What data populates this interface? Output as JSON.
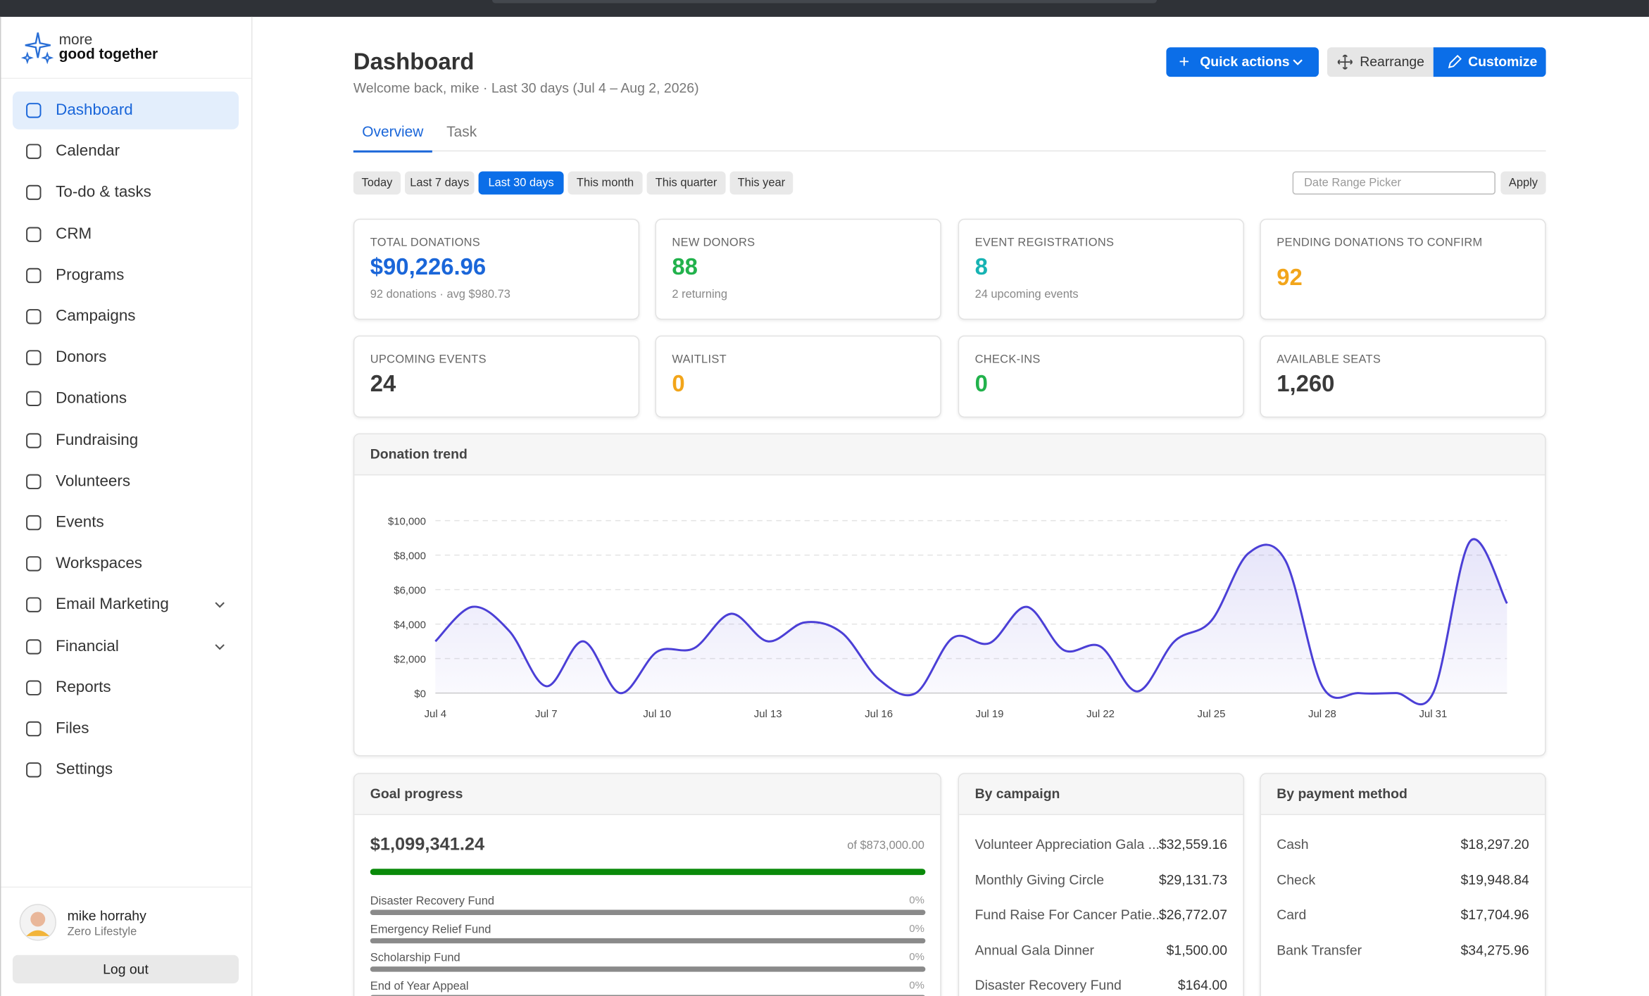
{
  "brand": {
    "line1": "more",
    "line2": "good together"
  },
  "sidebar": {
    "nav": [
      {
        "label": "Dashboard",
        "active": true
      },
      {
        "label": "Calendar"
      },
      {
        "label": "To-do & tasks"
      },
      {
        "label": "CRM"
      },
      {
        "label": "Programs"
      },
      {
        "label": "Campaigns"
      },
      {
        "label": "Donors"
      },
      {
        "label": "Donations"
      },
      {
        "label": "Fundraising"
      },
      {
        "label": "Volunteers"
      },
      {
        "label": "Events"
      },
      {
        "label": "Workspaces"
      },
      {
        "label": "Email Marketing",
        "has_submenu": true
      },
      {
        "label": "Financial",
        "has_submenu": true
      },
      {
        "label": "Reports"
      },
      {
        "label": "Files"
      },
      {
        "label": "Settings"
      }
    ],
    "user": {
      "name": "mike horrahy",
      "org": "Zero Lifestyle"
    },
    "logout": "Log out"
  },
  "header": {
    "title": "Dashboard",
    "subtitle": "Welcome back, mike · Last 30 days (Jul 4 – Aug 2, 2026)",
    "buttons": {
      "quick": "Quick actions",
      "rearrange": "Rearrange",
      "customize": "Customize"
    }
  },
  "tabs": [
    {
      "label": "Overview",
      "active": true
    },
    {
      "label": "Task"
    }
  ],
  "filters": {
    "ranges": [
      {
        "label": "Today"
      },
      {
        "label": "Last 7 days"
      },
      {
        "label": "Last 30 days",
        "active": true
      },
      {
        "label": "This month"
      },
      {
        "label": "This quarter"
      },
      {
        "label": "This year"
      }
    ],
    "date_placeholder": "Date Range Picker",
    "apply": "Apply"
  },
  "kpis": [
    {
      "label": "TOTAL DONATIONS",
      "value": "$90,226.96",
      "sub": "92 donations · avg $980.73",
      "color": "#1a66d9"
    },
    {
      "label": "NEW DONORS",
      "value": "88",
      "sub": "2 returning",
      "color": "#22b24c"
    },
    {
      "label": "EVENT REGISTRATIONS",
      "value": "8",
      "sub": "24 upcoming events",
      "color": "#17b3b3"
    },
    {
      "label": "PENDING DONATIONS TO CONFIRM",
      "value": "92",
      "color": "#f2a51a"
    },
    {
      "label": "UPCOMING EVENTS",
      "value": "24",
      "color": "#3a3a3a"
    },
    {
      "label": "WAITLIST",
      "value": "0",
      "color": "#f2a51a"
    },
    {
      "label": "CHECK-INS",
      "value": "0",
      "color": "#22b24c"
    },
    {
      "label": "AVAILABLE SEATS",
      "value": "1,260",
      "color": "#3a3a3a"
    }
  ],
  "chart_data": {
    "type": "line",
    "title": "Donation trend",
    "categories": [
      "Jul 4",
      null,
      null,
      "Jul 7",
      null,
      null,
      "Jul 10",
      null,
      null,
      "Jul 13",
      null,
      null,
      "Jul 16",
      null,
      null,
      "Jul 19",
      null,
      null,
      "Jul 22",
      null,
      null,
      "Jul 25",
      null,
      null,
      "Jul 28",
      null,
      null,
      "Jul 31",
      null,
      null
    ],
    "series": [
      {
        "name": "Donations",
        "color": "#4b3fd6",
        "values": [
          3000,
          5000,
          3600,
          400,
          3000,
          0,
          2400,
          2600,
          4600,
          3000,
          4100,
          3500,
          800,
          0,
          3200,
          2900,
          5000,
          2500,
          2700,
          100,
          3000,
          4200,
          8100,
          7700,
          400,
          0,
          0,
          0,
          8800,
          5200
        ]
      }
    ],
    "ylim": [
      0,
      10000
    ],
    "yticks": [
      {
        "value": 0,
        "label": "$0"
      },
      {
        "value": 2000,
        "label": "$2,000"
      },
      {
        "value": 4000,
        "label": "$4,000"
      },
      {
        "value": 6000,
        "label": "$6,000"
      },
      {
        "value": 8000,
        "label": "$8,000"
      },
      {
        "value": 10000,
        "label": "$10,000"
      }
    ],
    "grid": true
  },
  "goal": {
    "title": "Goal progress",
    "amount": "$1,099,341.24",
    "target": "of $873,000.00",
    "funds": [
      {
        "name": "Disaster Recovery Fund",
        "pct": "0%"
      },
      {
        "name": "Emergency Relief Fund",
        "pct": "0%"
      },
      {
        "name": "Scholarship Fund",
        "pct": "0%"
      },
      {
        "name": "End of Year Appeal",
        "pct": "0%"
      }
    ]
  },
  "campaigns": {
    "title": "By campaign",
    "rows": [
      [
        "Volunteer Appreciation Gala ...",
        "$32,559.16"
      ],
      [
        "Monthly Giving Circle",
        "$29,131.73"
      ],
      [
        "Fund Raise For Cancer Patie...",
        "$26,772.07"
      ],
      [
        "Annual Gala Dinner",
        "$1,500.00"
      ],
      [
        "Disaster Recovery Fund",
        "$164.00"
      ]
    ]
  },
  "payments": {
    "title": "By payment method",
    "rows": [
      [
        "Cash",
        "$18,297.20"
      ],
      [
        "Check",
        "$19,948.84"
      ],
      [
        "Card",
        "$17,704.96"
      ],
      [
        "Bank Transfer",
        "$34,275.96"
      ]
    ]
  }
}
